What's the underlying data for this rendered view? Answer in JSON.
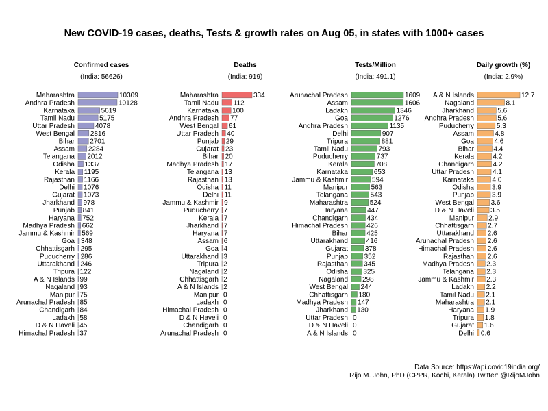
{
  "title": "New COVID-19 cases, deaths, Tests & growth rates on Aug 05, in states with 1000+ cases",
  "footer": {
    "source": "Data Source: https://api.covid19india.org/",
    "credit": "Rijo M. John, PhD (CPPR, Kochi, Kerala) Twitter: @RijoMJohn"
  },
  "chart_data": [
    {
      "type": "bar",
      "orientation": "horizontal",
      "title": "Confirmed cases",
      "subtitle": "(India: 56626)",
      "color": "#9999cc",
      "xlim": [
        0,
        10309
      ],
      "categories": [
        "Maharashtra",
        "Andhra Pradesh",
        "Karnataka",
        "Tamil Nadu",
        "Uttar Pradesh",
        "West Bengal",
        "Bihar",
        "Assam",
        "Telangana",
        "Odisha",
        "Kerala",
        "Rajasthan",
        "Delhi",
        "Gujarat",
        "Jharkhand",
        "Punjab",
        "Haryana",
        "Madhya Pradesh",
        "Jammu & Kashmir",
        "Goa",
        "Chhattisgarh",
        "Puducherry",
        "Uttarakhand",
        "Tripura",
        "A & N Islands",
        "Nagaland",
        "Manipur",
        "Arunachal Pradesh",
        "Chandigarh",
        "Ladakh",
        "D & N Haveli",
        "Himachal Pradesh"
      ],
      "values": [
        10309,
        10128,
        5619,
        5175,
        4078,
        2816,
        2701,
        2284,
        2012,
        1337,
        1195,
        1166,
        1076,
        1073,
        978,
        841,
        752,
        662,
        569,
        348,
        295,
        286,
        246,
        122,
        99,
        93,
        75,
        85,
        84,
        58,
        45,
        37
      ],
      "labels": [
        "10309",
        "10128",
        "5619",
        "5175",
        "4078",
        "2816",
        "2701",
        "2284",
        "2012",
        "1337",
        "1195",
        "1166",
        "1076",
        "1073",
        "978",
        "841",
        "752",
        "662",
        "569",
        "348",
        "295",
        "286",
        "246",
        "122",
        "99",
        "93",
        "75",
        "85",
        "84",
        "58",
        "45",
        "37"
      ]
    },
    {
      "type": "bar",
      "orientation": "horizontal",
      "title": "Deaths",
      "subtitle": "(India: 919)",
      "color": "#ee6a6a",
      "xlim": [
        0,
        334
      ],
      "categories": [
        "Maharashtra",
        "Tamil Nadu",
        "Karnataka",
        "Andhra Pradesh",
        "West Bengal",
        "Uttar Pradesh",
        "Punjab",
        "Gujarat",
        "Bihar",
        "Madhya Pradesh",
        "Telangana",
        "Rajasthan",
        "Odisha",
        "Delhi",
        "Jammu & Kashmir",
        "Puducherry",
        "Kerala",
        "Jharkhand",
        "Haryana",
        "Assam",
        "Goa",
        "Uttarakhand",
        "Tripura",
        "Nagaland",
        "Chhattisgarh",
        "A & N Islands",
        "Manipur",
        "Ladakh",
        "Himachal Pradesh",
        "D & N Haveli",
        "Chandigarh",
        "Arunachal Pradesh"
      ],
      "values": [
        334,
        112,
        100,
        77,
        61,
        40,
        29,
        23,
        20,
        17,
        13,
        13,
        11,
        11,
        9,
        7,
        7,
        7,
        7,
        6,
        4,
        3,
        2,
        2,
        2,
        2,
        0,
        0,
        0,
        0,
        0,
        0
      ],
      "labels": [
        "334",
        "112",
        "100",
        "77",
        "61",
        "40",
        "29",
        "23",
        "20",
        "17",
        "13",
        "13",
        "11",
        "11",
        "9",
        "7",
        "7",
        "7",
        "7",
        "6",
        "4",
        "3",
        "2",
        "2",
        "2",
        "2",
        "0",
        "0",
        "0",
        "0",
        "0",
        "0"
      ]
    },
    {
      "type": "bar",
      "orientation": "horizontal",
      "title": "Tests/Million",
      "subtitle": "(India: 491.1)",
      "color": "#66b366",
      "xlim": [
        0,
        1609
      ],
      "categories": [
        "Arunachal Pradesh",
        "Assam",
        "Ladakh",
        "Goa",
        "Andhra Pradesh",
        "Delhi",
        "Tripura",
        "Tamil Nadu",
        "Puducherry",
        "Kerala",
        "Karnataka",
        "Jammu & Kashmir",
        "Manipur",
        "Telangana",
        "Maharashtra",
        "Haryana",
        "Chandigarh",
        "Himachal Pradesh",
        "Bihar",
        "Uttarakhand",
        "Gujarat",
        "Punjab",
        "Rajasthan",
        "Odisha",
        "Nagaland",
        "West Bengal",
        "Chhattisgarh",
        "Madhya Pradesh",
        "Jharkhand",
        "Uttar Pradesh",
        "D & N Haveli",
        "A & N Islands"
      ],
      "values": [
        1609,
        1606,
        1346,
        1276,
        1135,
        907,
        881,
        793,
        737,
        708,
        653,
        594,
        563,
        543,
        524,
        447,
        434,
        426,
        425,
        416,
        378,
        352,
        345,
        325,
        298,
        244,
        180,
        147,
        130,
        0,
        0,
        0
      ],
      "labels": [
        "1609",
        "1606",
        "1346",
        "1276",
        "1135",
        "907",
        "881",
        "793",
        "737",
        "708",
        "653",
        "594",
        "563",
        "543",
        "524",
        "447",
        "434",
        "426",
        "425",
        "416",
        "378",
        "352",
        "345",
        "325",
        "298",
        "244",
        "180",
        "147",
        "130",
        "0",
        "0",
        "0"
      ]
    },
    {
      "type": "bar",
      "orientation": "horizontal",
      "title": "Daily growth (%)",
      "subtitle": "(India: 2.9%)",
      "color": "#f7b26b",
      "xlim": [
        0,
        12.7
      ],
      "categories": [
        "A & N Islands",
        "Nagaland",
        "Jharkhand",
        "Andhra Pradesh",
        "Puducherry",
        "Assam",
        "Goa",
        "Bihar",
        "Kerala",
        "Chandigarh",
        "Uttar Pradesh",
        "Karnataka",
        "Odisha",
        "Punjab",
        "West Bengal",
        "D & N Haveli",
        "Manipur",
        "Chhattisgarh",
        "Uttarakhand",
        "Arunachal Pradesh",
        "Himachal Pradesh",
        "Rajasthan",
        "Madhya Pradesh",
        "Telangana",
        "Jammu & Kashmir",
        "Ladakh",
        "Tamil Nadu",
        "Maharashtra",
        "Haryana",
        "Tripura",
        "Gujarat",
        "Delhi"
      ],
      "values": [
        12.7,
        8.1,
        5.6,
        5.6,
        5.3,
        4.8,
        4.6,
        4.4,
        4.2,
        4.2,
        4.1,
        4.0,
        3.9,
        3.9,
        3.6,
        3.5,
        2.9,
        2.7,
        2.6,
        2.6,
        2.6,
        2.6,
        2.3,
        2.3,
        2.3,
        2.2,
        2.1,
        2.1,
        1.9,
        1.8,
        1.6,
        0.6
      ],
      "labels": [
        "12.7",
        "8.1",
        "5.6",
        "5.6",
        "5.3",
        "4.8",
        "4.6",
        "4.4",
        "4.2",
        "4.2",
        "4.1",
        "4.0",
        "3.9",
        "3.9",
        "3.6",
        "3.5",
        "2.9",
        "2.7",
        "2.6",
        "2.6",
        "2.6",
        "2.6",
        "2.3",
        "2.3",
        "2.3",
        "2.2",
        "2.1",
        "2.1",
        "1.9",
        "1.8",
        "1.6",
        "0.6"
      ]
    }
  ]
}
